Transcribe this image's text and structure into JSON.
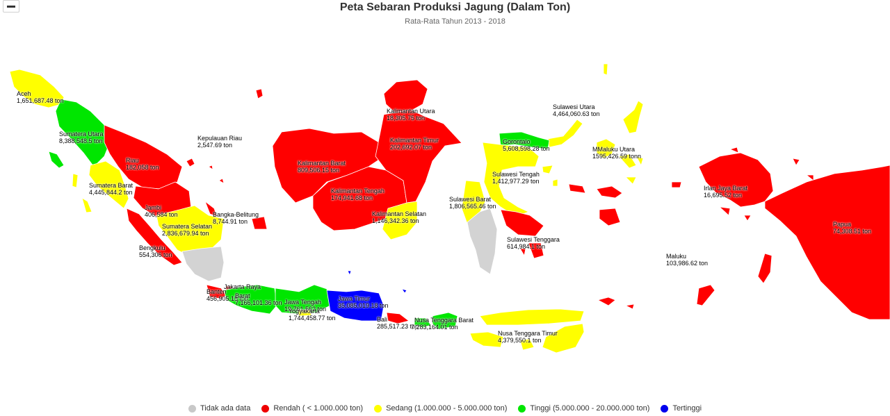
{
  "header": {
    "title": "Peta Sebaran Produksi Jagung (Dalam Ton)",
    "subtitle": "Rata-Rata Tahun 2013 - 2018"
  },
  "controls": {
    "zoom_out_icon": "minus-icon"
  },
  "colors": {
    "no_data": "#d3d3d3",
    "rendah": "#ff0000",
    "sedang": "#ffff00",
    "tinggi": "#00e600",
    "tertinggi": "#0000ff"
  },
  "legend": [
    {
      "label": "Tidak ada data",
      "color": "#c8c8c8"
    },
    {
      "label": "Rendah ( < 1.000.000 ton)",
      "color": "#ee0000"
    },
    {
      "label": "Sedang (1.000.000 - 5.000.000 ton)",
      "color": "#ffff00"
    },
    {
      "label": "Tinggi (5.000.000 - 20.000.000 ton)",
      "color": "#00e600"
    },
    {
      "label": "Tertinggi",
      "color": "#0000ee"
    }
  ],
  "provinces": [
    {
      "id": "aceh",
      "name": "Aceh",
      "value": "1,651,687.48 ton",
      "category": "sedang"
    },
    {
      "id": "sumut",
      "name": "Sumatera Utara",
      "value": "8,388,548.5 ton",
      "category": "tinggi"
    },
    {
      "id": "riau",
      "name": "Riau",
      "value": "182,058 ton",
      "category": "rendah"
    },
    {
      "id": "kepri",
      "name": "Kepulauan Riau",
      "value": "2,547.69 ton",
      "category": "rendah"
    },
    {
      "id": "sumbar",
      "name": "Sumatera Barat",
      "value": "4,445,844.2 ton",
      "category": "sedang"
    },
    {
      "id": "jambi",
      "name": "Jambi",
      "value": "406,584 ton",
      "category": "rendah"
    },
    {
      "id": "sumsel",
      "name": "Sumatera Selatan",
      "value": "2,836,679.94 ton",
      "category": "sedang"
    },
    {
      "id": "babel",
      "name": "Bangka-Belitung",
      "value": "8,744.91 ton",
      "category": "rendah"
    },
    {
      "id": "bengkulu",
      "name": "Bengkulu",
      "value": "554,306 ton",
      "category": "rendah"
    },
    {
      "id": "lampung",
      "name": "",
      "value": "",
      "category": "no_data"
    },
    {
      "id": "banten",
      "name": "Banten",
      "value": "456,905.15 ton",
      "category": "rendah"
    },
    {
      "id": "jakarta",
      "name": "Jakarta Raya",
      "value": "",
      "category": "rendah"
    },
    {
      "id": "jabar",
      "name": "Barat",
      "value": "7,166,101.36 ton",
      "category": "tinggi"
    },
    {
      "id": "jateng",
      "name": "Jawa Tengah",
      "value": "19,761,562 ton",
      "category": "tinggi"
    },
    {
      "id": "yogya",
      "name": "Yogyakarta",
      "value": "1,744,458.77 ton",
      "category": "sedang"
    },
    {
      "id": "jatim",
      "name": "Jawa Timur",
      "value": "35,085,019.18 ton",
      "category": "tertinggi"
    },
    {
      "id": "bali",
      "name": "Bali",
      "value": "285,517.23 ton",
      "category": "rendah"
    },
    {
      "id": "ntb",
      "name": "Nusa Tenggara Barat",
      "value": "7,283,164.01 ton",
      "category": "tinggi"
    },
    {
      "id": "ntt",
      "name": "Nusa Tenggara Timur",
      "value": "4,379,550.1 ton",
      "category": "sedang"
    },
    {
      "id": "kalbar",
      "name": "Kalimantan Barat",
      "value": "809,506.15 ton",
      "category": "rendah"
    },
    {
      "id": "kalteng",
      "name": "Kalimantan Tengah",
      "value": "174,941.68 ton",
      "category": "rendah"
    },
    {
      "id": "kalut",
      "name": "Kalimantan Utara",
      "value": "18,305.75 ton",
      "category": "rendah"
    },
    {
      "id": "kaltim",
      "name": "Kalimantan Timur",
      "value": "202,692.07 ton",
      "category": "rendah"
    },
    {
      "id": "kalsel",
      "name": "Kalimantan Selatan",
      "value": "1,146,342.36 ton",
      "category": "sedang"
    },
    {
      "id": "sulut",
      "name": "Sulawesi Utara",
      "value": "4,464,060.63 ton",
      "category": "sedang"
    },
    {
      "id": "gorontalo",
      "name": "Gorontalo",
      "value": "5,608,598.28 ton",
      "category": "tinggi"
    },
    {
      "id": "sulteng",
      "name": "Sulawesi Tengah",
      "value": "1,412,977.29 ton",
      "category": "sedang"
    },
    {
      "id": "sulbar",
      "name": "Sulawesi Barat",
      "value": "1,806,565.46 ton",
      "category": "sedang"
    },
    {
      "id": "sulsel",
      "name": "",
      "value": "",
      "category": "no_data"
    },
    {
      "id": "sultra",
      "name": "Sulawesi Tenggara",
      "value": "614,984.1 ton",
      "category": "rendah"
    },
    {
      "id": "malut",
      "name": "MMaluku Utara",
      "value": "1595,426.59 tonn",
      "category": "sedang"
    },
    {
      "id": "maluku",
      "name": "Maluku",
      "value": "103,986.62 ton",
      "category": "rendah"
    },
    {
      "id": "irjabar",
      "name": "Irlan Jaya Barat",
      "value": "16,695.52 ton",
      "category": "rendah"
    },
    {
      "id": "papua",
      "name": "Papua",
      "value": "74,308.51 ton",
      "category": "rendah"
    }
  ]
}
